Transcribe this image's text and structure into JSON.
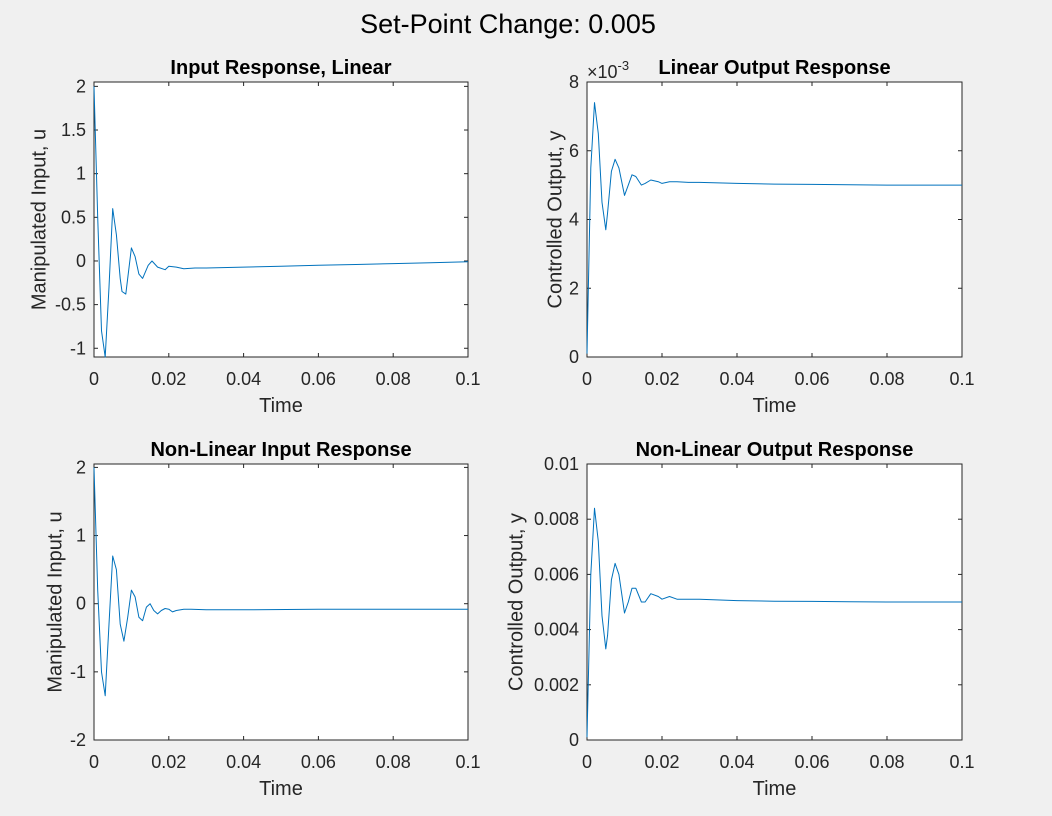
{
  "figure_title": "Set-Point Change: 0.005",
  "line_color": "#0072bd",
  "chart_data": [
    {
      "type": "line",
      "title": "Input Response, Linear",
      "xlabel": "Time",
      "ylabel": "Manipulated Input, u",
      "xlim": [
        0,
        0.1
      ],
      "ylim": [
        -1.1,
        2.05
      ],
      "xticks": [
        0,
        0.02,
        0.04,
        0.06,
        0.08,
        0.1
      ],
      "xtick_labels": [
        "0",
        "0.02",
        "0.04",
        "0.06",
        "0.08",
        "0.1"
      ],
      "yticks": [
        -1,
        -0.5,
        0,
        0.5,
        1,
        1.5,
        2
      ],
      "ytick_labels": [
        "-1",
        "-0.5",
        "0",
        "0.5",
        "1",
        "1.5",
        "2"
      ],
      "grid": false,
      "exponent_label": "",
      "series": [
        {
          "x": [
            0,
            0.001,
            0.002,
            0.003,
            0.004,
            0.005,
            0.006,
            0.007,
            0.0075,
            0.0085,
            0.01,
            0.011,
            0.012,
            0.013,
            0.0145,
            0.0155,
            0.017,
            0.019,
            0.02,
            0.022,
            0.024,
            0.027,
            0.03,
            0.04,
            0.05,
            0.06,
            0.07,
            0.08,
            0.09,
            0.1
          ],
          "y": [
            2.0,
            0.5,
            -0.8,
            -1.1,
            -0.3,
            0.6,
            0.3,
            -0.2,
            -0.35,
            -0.38,
            0.15,
            0.05,
            -0.15,
            -0.2,
            -0.05,
            0.0,
            -0.07,
            -0.1,
            -0.06,
            -0.07,
            -0.09,
            -0.08,
            -0.08,
            -0.07,
            -0.06,
            -0.05,
            -0.04,
            -0.03,
            -0.02,
            -0.01
          ]
        }
      ]
    },
    {
      "type": "line",
      "title": "Linear Output Response",
      "xlabel": "Time",
      "ylabel": "Controlled Output, y",
      "xlim": [
        0,
        0.1
      ],
      "ylim": [
        0,
        8
      ],
      "xticks": [
        0,
        0.02,
        0.04,
        0.06,
        0.08,
        0.1
      ],
      "xtick_labels": [
        "0",
        "0.02",
        "0.04",
        "0.06",
        "0.08",
        "0.1"
      ],
      "yticks": [
        0,
        2,
        4,
        6,
        8
      ],
      "ytick_labels": [
        "0",
        "2",
        "4",
        "6",
        "8"
      ],
      "grid": false,
      "exponent_label": "×10",
      "exponent_power": "-3",
      "series": [
        {
          "x": [
            0,
            0.001,
            0.002,
            0.003,
            0.004,
            0.005,
            0.0055,
            0.0065,
            0.0075,
            0.0085,
            0.01,
            0.011,
            0.012,
            0.013,
            0.0145,
            0.0155,
            0.017,
            0.019,
            0.02,
            0.022,
            0.024,
            0.027,
            0.03,
            0.04,
            0.05,
            0.06,
            0.07,
            0.08,
            0.09,
            0.1
          ],
          "y": [
            0.1,
            5.5,
            7.4,
            6.5,
            4.5,
            3.7,
            4.2,
            5.4,
            5.75,
            5.5,
            4.7,
            5.0,
            5.3,
            5.25,
            5.0,
            5.05,
            5.15,
            5.1,
            5.05,
            5.1,
            5.1,
            5.08,
            5.08,
            5.05,
            5.03,
            5.02,
            5.01,
            5.0,
            5.0,
            5.0
          ]
        }
      ]
    },
    {
      "type": "line",
      "title": "Non-Linear Input Response",
      "xlabel": "Time",
      "ylabel": "Manipulated Input, u",
      "xlim": [
        0,
        0.1
      ],
      "ylim": [
        -2,
        2.05
      ],
      "xticks": [
        0,
        0.02,
        0.04,
        0.06,
        0.08,
        0.1
      ],
      "xtick_labels": [
        "0",
        "0.02",
        "0.04",
        "0.06",
        "0.08",
        "0.1"
      ],
      "yticks": [
        -2,
        -1,
        0,
        1,
        2
      ],
      "ytick_labels": [
        "-2",
        "-1",
        "0",
        "1",
        "2"
      ],
      "grid": false,
      "exponent_label": "",
      "series": [
        {
          "x": [
            0,
            0.001,
            0.002,
            0.003,
            0.004,
            0.005,
            0.006,
            0.007,
            0.008,
            0.009,
            0.01,
            0.011,
            0.012,
            0.013,
            0.014,
            0.015,
            0.016,
            0.017,
            0.018,
            0.019,
            0.02,
            0.021,
            0.022,
            0.024,
            0.026,
            0.03,
            0.04,
            0.06,
            0.08,
            0.1
          ],
          "y": [
            2.0,
            0.2,
            -1.0,
            -1.35,
            -0.3,
            0.7,
            0.5,
            -0.3,
            -0.55,
            -0.2,
            0.2,
            0.1,
            -0.2,
            -0.25,
            -0.05,
            0.0,
            -0.1,
            -0.15,
            -0.1,
            -0.07,
            -0.08,
            -0.12,
            -0.1,
            -0.08,
            -0.08,
            -0.09,
            -0.09,
            -0.08,
            -0.08,
            -0.08
          ]
        }
      ]
    },
    {
      "type": "line",
      "title": "Non-Linear Output Response",
      "xlabel": "Time",
      "ylabel": "Controlled Output, y",
      "xlim": [
        0,
        0.1
      ],
      "ylim": [
        0,
        0.01
      ],
      "xticks": [
        0,
        0.02,
        0.04,
        0.06,
        0.08,
        0.1
      ],
      "xtick_labels": [
        "0",
        "0.02",
        "0.04",
        "0.06",
        "0.08",
        "0.1"
      ],
      "yticks": [
        0,
        0.002,
        0.004,
        0.006,
        0.008,
        0.01
      ],
      "ytick_labels": [
        "0",
        "0.002",
        "0.004",
        "0.006",
        "0.008",
        "0.01"
      ],
      "grid": false,
      "exponent_label": "",
      "series": [
        {
          "x": [
            0,
            0.001,
            0.002,
            0.003,
            0.004,
            0.005,
            0.0055,
            0.0065,
            0.0075,
            0.0085,
            0.01,
            0.011,
            0.012,
            0.013,
            0.0145,
            0.0155,
            0.017,
            0.019,
            0.02,
            0.022,
            0.024,
            0.027,
            0.03,
            0.04,
            0.05,
            0.06,
            0.07,
            0.08,
            0.09,
            0.1
          ],
          "y": [
            0.0001,
            0.006,
            0.0084,
            0.0072,
            0.0045,
            0.0033,
            0.0038,
            0.0058,
            0.0064,
            0.006,
            0.0046,
            0.005,
            0.0055,
            0.0055,
            0.005,
            0.005,
            0.0053,
            0.0052,
            0.0051,
            0.0052,
            0.0051,
            0.0051,
            0.0051,
            0.00505,
            0.00503,
            0.00502,
            0.00501,
            0.005,
            0.005,
            0.005
          ]
        }
      ]
    }
  ]
}
